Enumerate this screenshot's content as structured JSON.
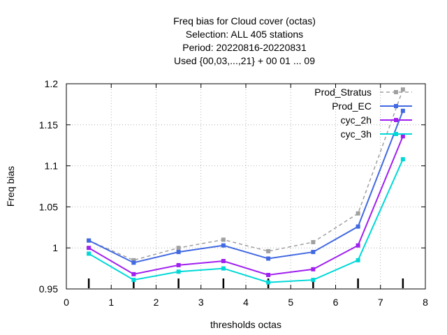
{
  "chart_data": {
    "type": "line",
    "title": [
      "Freq bias  for Cloud cover (octas)",
      "Selection: ALL    405 stations",
      "Period: 20220816-20220831",
      "Used {00,03,...,21} + 00 01 ... 09"
    ],
    "xlabel": "thresholds octas",
    "ylabel": "Freq bias",
    "xlim": [
      0,
      8
    ],
    "ylim": [
      0.95,
      1.2
    ],
    "xticks": [
      0,
      1,
      2,
      3,
      4,
      5,
      6,
      7,
      8
    ],
    "yticks": [
      0.95,
      1,
      1.05,
      1.1,
      1.15,
      1.2
    ],
    "xtick_labels": [
      "0",
      "1",
      "2",
      "3",
      "4",
      "5",
      "6",
      "7",
      "8"
    ],
    "ytick_labels": [
      "0.95",
      "1",
      "1.05",
      "1.1",
      "1.15",
      "1.2"
    ],
    "grid": true,
    "legend_position": "top-right",
    "x": [
      0.5,
      1.5,
      2.5,
      3.5,
      4.5,
      5.5,
      6.5,
      7.5
    ],
    "series": [
      {
        "name": "Prod_Stratus",
        "color": "#a0a0a0",
        "dashed": true,
        "values": [
          1.009,
          0.985,
          1.0,
          1.01,
          0.996,
          1.007,
          1.042,
          1.193
        ]
      },
      {
        "name": "Prod_EC",
        "color": "#4169e1",
        "dashed": false,
        "values": [
          1.009,
          0.982,
          0.995,
          1.003,
          0.987,
          0.995,
          1.026,
          1.167
        ]
      },
      {
        "name": "cyc_2h",
        "color": "#a020f0",
        "dashed": false,
        "values": [
          1.0,
          0.968,
          0.979,
          0.984,
          0.967,
          0.974,
          1.003,
          1.136
        ]
      },
      {
        "name": "cyc_3h",
        "color": "#00d8d8",
        "dashed": false,
        "values": [
          0.993,
          0.961,
          0.971,
          0.975,
          0.958,
          0.961,
          0.985,
          1.108
        ]
      }
    ]
  }
}
